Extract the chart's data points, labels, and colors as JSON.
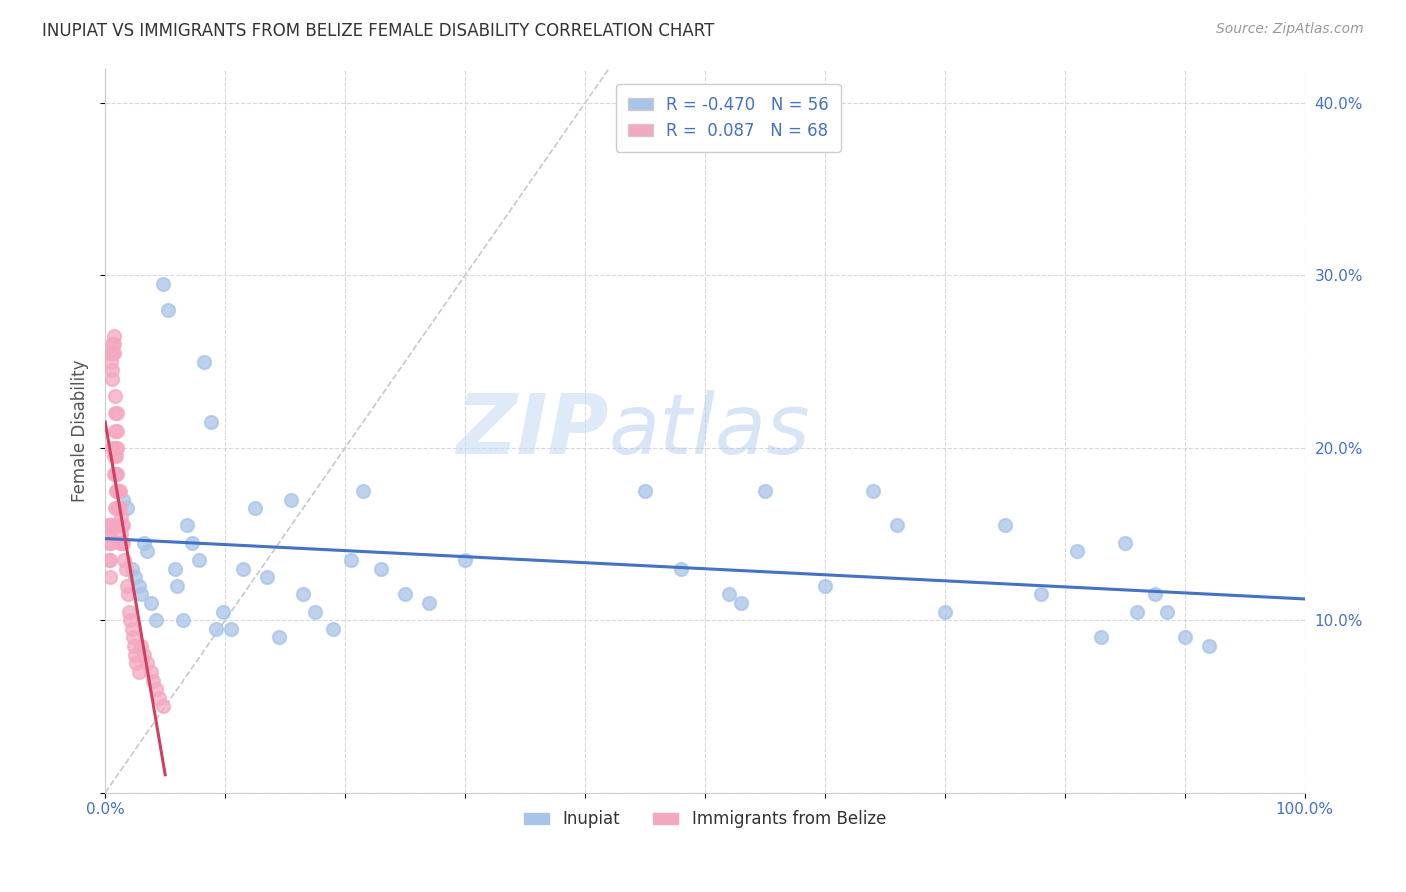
{
  "title": "INUPIAT VS IMMIGRANTS FROM BELIZE FEMALE DISABILITY CORRELATION CHART",
  "source": "Source: ZipAtlas.com",
  "ylabel": "Female Disability",
  "xlim": [
    0,
    1.0
  ],
  "ylim": [
    0,
    0.42
  ],
  "xticks": [
    0.0,
    0.1,
    0.2,
    0.3,
    0.4,
    0.5,
    0.6,
    0.7,
    0.8,
    0.9,
    1.0
  ],
  "xticklabels": [
    "0.0%",
    "",
    "",
    "",
    "",
    "",
    "",
    "",
    "",
    "",
    "100.0%"
  ],
  "yticks": [
    0.0,
    0.1,
    0.2,
    0.3,
    0.4
  ],
  "yticklabels": [
    "",
    "10.0%",
    "20.0%",
    "30.0%",
    "40.0%"
  ],
  "inupiat_R": -0.47,
  "inupiat_N": 56,
  "belize_R": 0.087,
  "belize_N": 68,
  "inupiat_color": "#a8c4e8",
  "belize_color": "#f4a8bf",
  "inupiat_line_color": "#4472c4",
  "belize_line_color": "#d04060",
  "diagonal_color": "#c8c8c8",
  "watermark_zip": "ZIP",
  "watermark_atlas": "atlas",
  "inupiat_x": [
    0.015,
    0.018,
    0.022,
    0.025,
    0.028,
    0.03,
    0.032,
    0.035,
    0.038,
    0.042,
    0.048,
    0.052,
    0.058,
    0.06,
    0.065,
    0.068,
    0.072,
    0.078,
    0.082,
    0.088,
    0.092,
    0.098,
    0.105,
    0.115,
    0.125,
    0.135,
    0.145,
    0.155,
    0.165,
    0.175,
    0.19,
    0.205,
    0.215,
    0.23,
    0.25,
    0.27,
    0.3,
    0.45,
    0.48,
    0.52,
    0.53,
    0.55,
    0.6,
    0.64,
    0.66,
    0.7,
    0.75,
    0.78,
    0.81,
    0.83,
    0.85,
    0.86,
    0.875,
    0.885,
    0.9,
    0.92
  ],
  "inupiat_y": [
    0.17,
    0.165,
    0.13,
    0.125,
    0.12,
    0.115,
    0.145,
    0.14,
    0.11,
    0.1,
    0.295,
    0.28,
    0.13,
    0.12,
    0.1,
    0.155,
    0.145,
    0.135,
    0.25,
    0.215,
    0.095,
    0.105,
    0.095,
    0.13,
    0.165,
    0.125,
    0.09,
    0.17,
    0.115,
    0.105,
    0.095,
    0.135,
    0.175,
    0.13,
    0.115,
    0.11,
    0.135,
    0.175,
    0.13,
    0.115,
    0.11,
    0.175,
    0.12,
    0.175,
    0.155,
    0.105,
    0.155,
    0.115,
    0.14,
    0.09,
    0.145,
    0.105,
    0.115,
    0.105,
    0.09,
    0.085
  ],
  "belize_x": [
    0.002,
    0.003,
    0.003,
    0.003,
    0.004,
    0.004,
    0.004,
    0.004,
    0.005,
    0.005,
    0.005,
    0.005,
    0.006,
    0.006,
    0.006,
    0.006,
    0.006,
    0.007,
    0.007,
    0.007,
    0.007,
    0.007,
    0.008,
    0.008,
    0.008,
    0.008,
    0.009,
    0.009,
    0.009,
    0.009,
    0.01,
    0.01,
    0.01,
    0.01,
    0.01,
    0.01,
    0.011,
    0.011,
    0.011,
    0.012,
    0.012,
    0.012,
    0.013,
    0.013,
    0.014,
    0.014,
    0.015,
    0.015,
    0.016,
    0.017,
    0.018,
    0.019,
    0.02,
    0.021,
    0.022,
    0.023,
    0.024,
    0.025,
    0.026,
    0.028,
    0.03,
    0.032,
    0.035,
    0.038,
    0.04,
    0.042,
    0.045,
    0.048
  ],
  "belize_y": [
    0.155,
    0.15,
    0.145,
    0.135,
    0.155,
    0.15,
    0.135,
    0.125,
    0.255,
    0.25,
    0.155,
    0.145,
    0.26,
    0.255,
    0.245,
    0.24,
    0.2,
    0.265,
    0.26,
    0.255,
    0.195,
    0.185,
    0.23,
    0.22,
    0.21,
    0.165,
    0.2,
    0.195,
    0.185,
    0.175,
    0.22,
    0.21,
    0.2,
    0.185,
    0.175,
    0.165,
    0.175,
    0.165,
    0.155,
    0.175,
    0.165,
    0.145,
    0.16,
    0.15,
    0.155,
    0.145,
    0.155,
    0.145,
    0.135,
    0.13,
    0.12,
    0.115,
    0.105,
    0.1,
    0.095,
    0.09,
    0.085,
    0.08,
    0.075,
    0.07,
    0.085,
    0.08,
    0.075,
    0.07,
    0.065,
    0.06,
    0.055,
    0.05
  ]
}
